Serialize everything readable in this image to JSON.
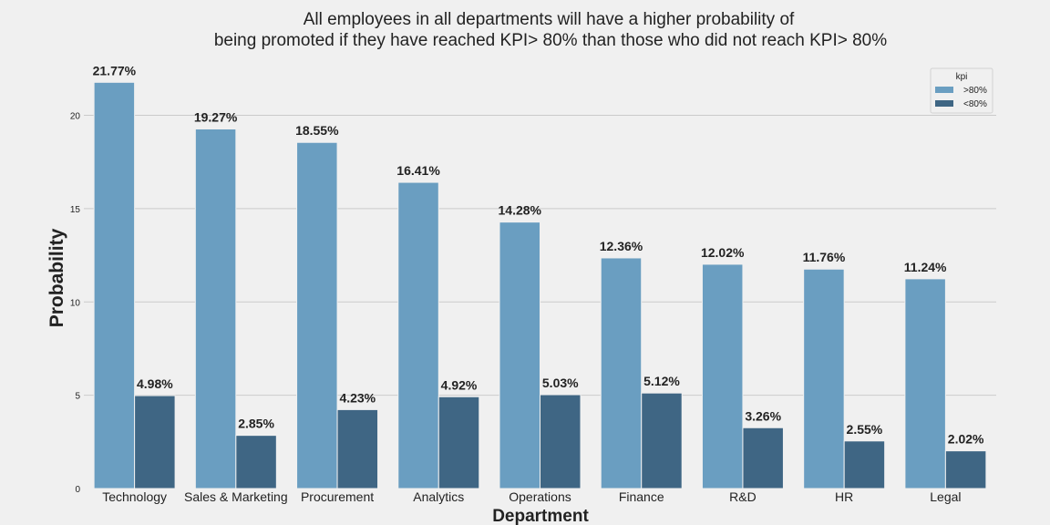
{
  "chart_data": {
    "type": "bar",
    "title_lines": [
      "All employees in all departments will have a higher probability of",
      "being promoted if they have reached KPI> 80% than those who did not reach KPI> 80%"
    ],
    "xlabel": "Department",
    "ylabel": "Probability",
    "categories": [
      "Technology",
      "Sales & Marketing",
      "Procurement",
      "Analytics",
      "Operations",
      "Finance",
      "R&D",
      "HR",
      "Legal"
    ],
    "series": [
      {
        "name": ">80%",
        "color": "#6a9ec1",
        "values": [
          21.77,
          19.27,
          18.55,
          16.41,
          14.28,
          12.36,
          12.02,
          11.76,
          11.24
        ],
        "labels": [
          "21.77%",
          "19.27%",
          "18.55%",
          "16.41%",
          "14.28%",
          "12.36%",
          "12.02%",
          "11.76%",
          "11.24%"
        ]
      },
      {
        "name": "<80%",
        "color": "#3f6684",
        "values": [
          4.98,
          2.85,
          4.23,
          4.92,
          5.03,
          5.12,
          3.26,
          2.55,
          2.02
        ],
        "labels": [
          "4.98%",
          "2.85%",
          "4.23%",
          "4.92%",
          "5.03%",
          "5.12%",
          "3.26%",
          "2.55%",
          "2.02%"
        ]
      }
    ],
    "y_ticks": [
      0,
      5,
      10,
      15,
      20
    ],
    "y_tick_labels": [
      "0",
      "5",
      "10",
      "15",
      "20"
    ],
    "ylim": [
      0,
      22.86
    ],
    "grid": "horizontal",
    "legend": {
      "title": "kpi",
      "placement": "top-right"
    }
  }
}
